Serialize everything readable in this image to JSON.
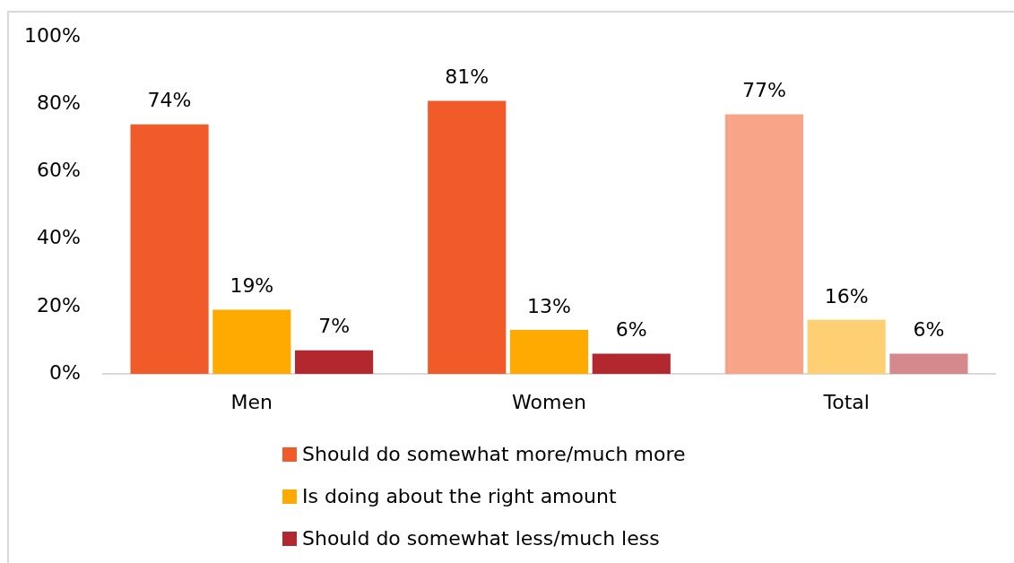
{
  "chart_data": {
    "type": "bar",
    "categories": [
      "Men",
      "Women",
      "Total"
    ],
    "series": [
      {
        "name": "Should do somewhat more/much more",
        "color": "#f15a29",
        "colors": [
          "#f15a29",
          "#f15a29",
          "#f7a489"
        ],
        "values": [
          74,
          81,
          77
        ],
        "value_labels": [
          "74%",
          "81%",
          "77%"
        ]
      },
      {
        "name": "Is doing about the right amount",
        "color": "#ffaa00",
        "colors": [
          "#ffaa00",
          "#ffaa00",
          "#ffd073"
        ],
        "values": [
          19,
          13,
          16
        ],
        "value_labels": [
          "19%",
          "13%",
          "16%"
        ]
      },
      {
        "name": "Should do somewhat less/much less",
        "color": "#b2282e",
        "colors": [
          "#b2282e",
          "#b2282e",
          "#d5898c"
        ],
        "values": [
          7,
          6,
          6
        ],
        "value_labels": [
          "7%",
          "6%",
          "6%"
        ]
      }
    ],
    "ylim": [
      0,
      100
    ],
    "yticks": [
      {
        "value": 0,
        "label": "0%"
      },
      {
        "value": 20,
        "label": "20%"
      },
      {
        "value": 40,
        "label": "40%"
      },
      {
        "value": 60,
        "label": "60%"
      },
      {
        "value": 80,
        "label": "80%"
      },
      {
        "value": 100,
        "label": "100%"
      }
    ],
    "legend": "bottom"
  }
}
